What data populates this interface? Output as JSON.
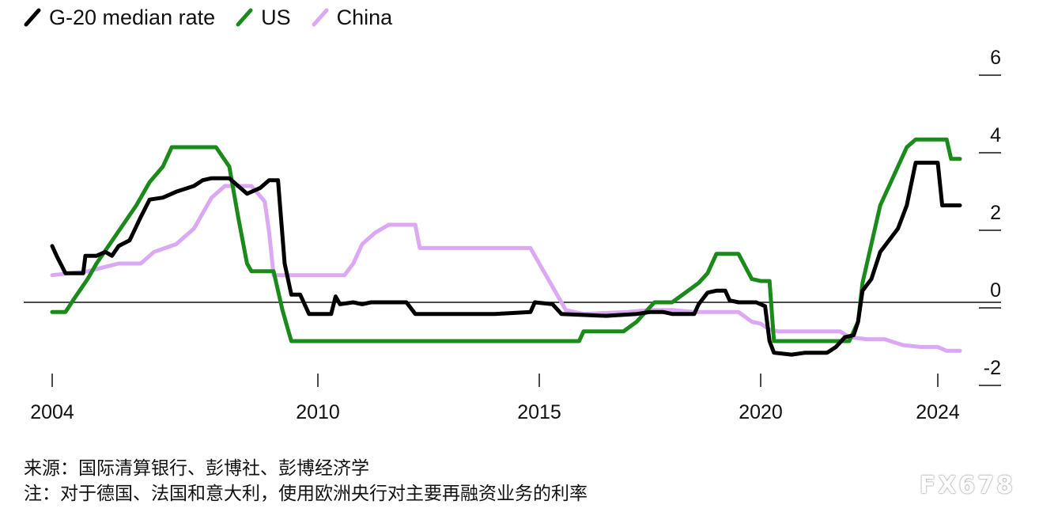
{
  "chart_data": {
    "type": "line",
    "title": "",
    "xlabel": "",
    "ylabel": "",
    "x_ticks": [
      "2004",
      "2010",
      "2015",
      "2020",
      "2024"
    ],
    "y_ticks": [
      "6",
      "4",
      "2",
      "0",
      "-2"
    ],
    "ylim": [
      -2,
      6
    ],
    "xlim": [
      2004,
      2024
    ],
    "legend_position": "top-left",
    "series": [
      {
        "name": "G-20 median rate",
        "color": "#000000",
        "points": [
          [
            2004.0,
            1.45
          ],
          [
            2004.1,
            1.2
          ],
          [
            2004.3,
            0.75
          ],
          [
            2004.7,
            0.75
          ],
          [
            2004.75,
            1.2
          ],
          [
            2005.0,
            1.2
          ],
          [
            2005.2,
            1.3
          ],
          [
            2005.35,
            1.2
          ],
          [
            2005.5,
            1.45
          ],
          [
            2005.75,
            1.6
          ],
          [
            2006.0,
            2.2
          ],
          [
            2006.2,
            2.65
          ],
          [
            2006.5,
            2.7
          ],
          [
            2006.8,
            2.85
          ],
          [
            2007.2,
            3.0
          ],
          [
            2007.4,
            3.15
          ],
          [
            2007.6,
            3.2
          ],
          [
            2008.0,
            3.2
          ],
          [
            2008.2,
            3.0
          ],
          [
            2008.4,
            2.8
          ],
          [
            2008.7,
            2.95
          ],
          [
            2008.9,
            3.15
          ],
          [
            2009.1,
            3.15
          ],
          [
            2009.25,
            1.0
          ],
          [
            2009.4,
            0.2
          ],
          [
            2009.6,
            0.2
          ],
          [
            2009.8,
            -0.3
          ],
          [
            2010.3,
            -0.3
          ],
          [
            2010.4,
            0.15
          ],
          [
            2010.5,
            -0.05
          ],
          [
            2010.8,
            0.0
          ],
          [
            2011.0,
            -0.05
          ],
          [
            2011.2,
            0.0
          ],
          [
            2012.0,
            0.0
          ],
          [
            2012.2,
            -0.3
          ],
          [
            2013.0,
            -0.3
          ],
          [
            2014.0,
            -0.3
          ],
          [
            2014.8,
            -0.25
          ],
          [
            2014.9,
            0.0
          ],
          [
            2015.3,
            -0.05
          ],
          [
            2015.5,
            -0.3
          ],
          [
            2016.5,
            -0.35
          ],
          [
            2017.2,
            -0.3
          ],
          [
            2017.5,
            -0.25
          ],
          [
            2017.8,
            -0.25
          ],
          [
            2018.0,
            -0.3
          ],
          [
            2018.5,
            -0.3
          ],
          [
            2018.6,
            -0.05
          ],
          [
            2018.8,
            0.25
          ],
          [
            2019.0,
            0.3
          ],
          [
            2019.2,
            0.3
          ],
          [
            2019.3,
            0.05
          ],
          [
            2019.5,
            0.0
          ],
          [
            2019.9,
            0.0
          ],
          [
            2020.1,
            -0.1
          ],
          [
            2020.2,
            -1.0
          ],
          [
            2020.3,
            -1.3
          ],
          [
            2020.7,
            -1.35
          ],
          [
            2021.0,
            -1.3
          ],
          [
            2021.5,
            -1.3
          ],
          [
            2021.7,
            -1.15
          ],
          [
            2021.9,
            -0.9
          ],
          [
            2022.1,
            -0.85
          ],
          [
            2022.2,
            -0.5
          ],
          [
            2022.3,
            0.3
          ],
          [
            2022.5,
            0.6
          ],
          [
            2022.7,
            1.3
          ],
          [
            2022.9,
            1.6
          ],
          [
            2023.1,
            1.9
          ],
          [
            2023.3,
            2.5
          ],
          [
            2023.5,
            3.6
          ],
          [
            2023.8,
            3.6
          ],
          [
            2024.0,
            3.6
          ],
          [
            2024.1,
            2.5
          ],
          [
            2024.5,
            2.5
          ]
        ]
      },
      {
        "name": "US",
        "color": "#1a8a1a",
        "points": [
          [
            2004.0,
            -0.25
          ],
          [
            2004.3,
            -0.25
          ],
          [
            2004.5,
            0.1
          ],
          [
            2004.8,
            0.6
          ],
          [
            2005.0,
            1.0
          ],
          [
            2005.3,
            1.5
          ],
          [
            2005.6,
            2.0
          ],
          [
            2005.9,
            2.5
          ],
          [
            2006.2,
            3.1
          ],
          [
            2006.5,
            3.5
          ],
          [
            2006.7,
            4.0
          ],
          [
            2007.0,
            4.0
          ],
          [
            2007.7,
            4.0
          ],
          [
            2008.0,
            3.5
          ],
          [
            2008.2,
            2.2
          ],
          [
            2008.4,
            1.0
          ],
          [
            2008.5,
            0.8
          ],
          [
            2009.0,
            0.8
          ],
          [
            2009.2,
            -0.2
          ],
          [
            2009.4,
            -1.0
          ],
          [
            2010.0,
            -1.0
          ],
          [
            2014.0,
            -1.0
          ],
          [
            2015.0,
            -1.0
          ],
          [
            2015.9,
            -1.0
          ],
          [
            2016.0,
            -0.75
          ],
          [
            2016.9,
            -0.75
          ],
          [
            2017.2,
            -0.5
          ],
          [
            2017.6,
            0.0
          ],
          [
            2018.0,
            0.0
          ],
          [
            2018.3,
            0.25
          ],
          [
            2018.6,
            0.5
          ],
          [
            2018.8,
            0.75
          ],
          [
            2019.0,
            1.25
          ],
          [
            2019.5,
            1.25
          ],
          [
            2019.8,
            0.6
          ],
          [
            2020.0,
            0.55
          ],
          [
            2020.2,
            0.55
          ],
          [
            2020.3,
            -1.0
          ],
          [
            2021.0,
            -1.0
          ],
          [
            2022.0,
            -1.0
          ],
          [
            2022.2,
            -0.5
          ],
          [
            2022.3,
            0.5
          ],
          [
            2022.5,
            1.5
          ],
          [
            2022.7,
            2.5
          ],
          [
            2022.9,
            3.0
          ],
          [
            2023.1,
            3.5
          ],
          [
            2023.3,
            4.0
          ],
          [
            2023.5,
            4.2
          ],
          [
            2024.0,
            4.2
          ],
          [
            2024.2,
            4.2
          ],
          [
            2024.3,
            3.7
          ],
          [
            2024.5,
            3.7
          ]
        ]
      },
      {
        "name": "China",
        "color": "#dba8f3",
        "points": [
          [
            2004.0,
            0.7
          ],
          [
            2004.8,
            0.8
          ],
          [
            2005.5,
            1.0
          ],
          [
            2006.0,
            1.0
          ],
          [
            2006.3,
            1.3
          ],
          [
            2006.8,
            1.5
          ],
          [
            2007.2,
            1.9
          ],
          [
            2007.6,
            2.7
          ],
          [
            2007.9,
            3.0
          ],
          [
            2008.5,
            3.0
          ],
          [
            2008.8,
            2.6
          ],
          [
            2008.9,
            1.8
          ],
          [
            2009.0,
            0.7
          ],
          [
            2009.2,
            0.7
          ],
          [
            2010.0,
            0.7
          ],
          [
            2010.6,
            0.7
          ],
          [
            2010.8,
            1.0
          ],
          [
            2011.0,
            1.5
          ],
          [
            2011.3,
            1.8
          ],
          [
            2011.6,
            2.0
          ],
          [
            2012.2,
            2.0
          ],
          [
            2012.3,
            1.4
          ],
          [
            2013.0,
            1.4
          ],
          [
            2014.0,
            1.4
          ],
          [
            2014.8,
            1.4
          ],
          [
            2015.0,
            1.0
          ],
          [
            2015.3,
            0.4
          ],
          [
            2015.6,
            -0.2
          ],
          [
            2016.0,
            -0.3
          ],
          [
            2017.0,
            -0.25
          ],
          [
            2017.5,
            -0.2
          ],
          [
            2018.0,
            -0.2
          ],
          [
            2018.5,
            -0.25
          ],
          [
            2019.0,
            -0.25
          ],
          [
            2019.5,
            -0.25
          ],
          [
            2019.8,
            -0.5
          ],
          [
            2020.0,
            -0.55
          ],
          [
            2020.2,
            -0.7
          ],
          [
            2020.4,
            -0.75
          ],
          [
            2021.0,
            -0.75
          ],
          [
            2021.8,
            -0.75
          ],
          [
            2022.0,
            -0.9
          ],
          [
            2022.4,
            -0.95
          ],
          [
            2022.8,
            -0.95
          ],
          [
            2023.2,
            -1.1
          ],
          [
            2023.6,
            -1.15
          ],
          [
            2024.0,
            -1.15
          ],
          [
            2024.2,
            -1.25
          ],
          [
            2024.5,
            -1.25
          ]
        ]
      }
    ]
  },
  "footer": {
    "source_line": "来源：国际清算银行、彭博社、彭博经济学",
    "note_line": "注：对于德国、法国和意大利，使用欧洲央行对主要再融资业务的利率",
    "watermark": "FX678"
  }
}
